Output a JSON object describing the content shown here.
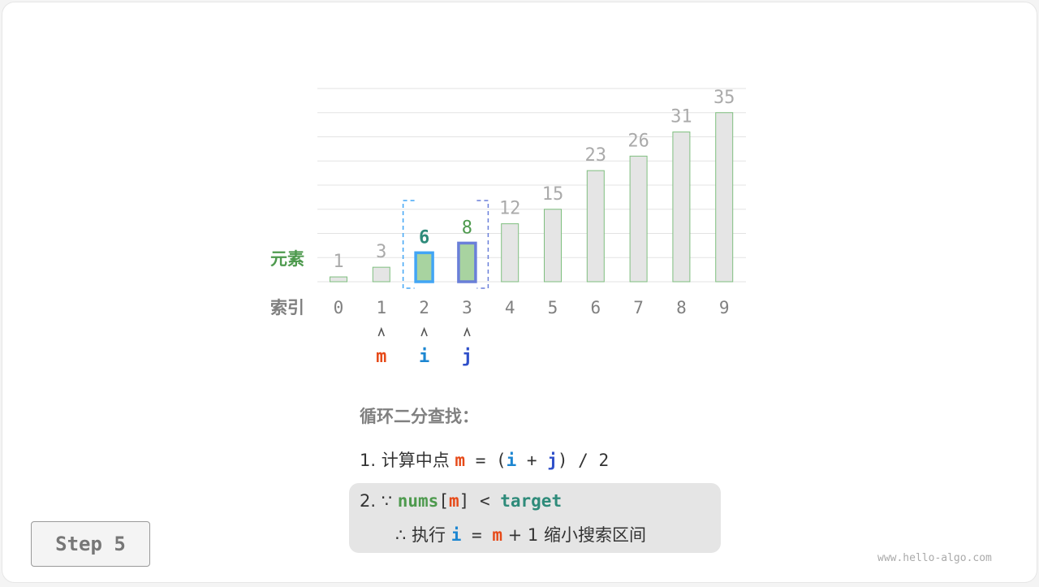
{
  "chart_data": {
    "type": "bar",
    "categories": [
      "0",
      "1",
      "2",
      "3",
      "4",
      "5",
      "6",
      "7",
      "8",
      "9"
    ],
    "values": [
      1,
      3,
      6,
      8,
      12,
      15,
      23,
      26,
      31,
      35
    ],
    "ylim": [
      0,
      40
    ],
    "grid": true,
    "row_labels": {
      "element": "元素",
      "index": "索引"
    },
    "highlight": {
      "i": 2,
      "j": 3,
      "m": 1
    },
    "colors": {
      "bar": "#e5e5e5",
      "bar_border": "#7fbf7f",
      "highlight_fill": "#a8d3a0",
      "i_border": "#42a5f5",
      "j_border": "#6a7fd9",
      "i_label": "#1c86d1",
      "j_label": "#2f4fc9",
      "m_label": "#e64a19",
      "six": "#2e8b7a",
      "eight": "#4e9a4e",
      "muted": "#aaaaaa"
    }
  },
  "pointers": {
    "arrow": "^",
    "m": "m",
    "i": "i",
    "j": "j"
  },
  "steps": {
    "title": "循环二分查找：",
    "line1": {
      "prefix": "1. 计算中点 ",
      "m": "m",
      "eq": " = (",
      "i": "i",
      "plus": " + ",
      "j": "j",
      "suffix": ") / 2"
    },
    "line2": {
      "prefix": "2. ∵ ",
      "nums": "nums",
      "lb": "[",
      "m": "m",
      "rb": "]",
      "lt": " < ",
      "target": "target"
    },
    "line3": {
      "prefix": "∴ 执行 ",
      "i": "i",
      "eq": " = ",
      "m": "m",
      "suffix": " + 1 缩小搜索区间"
    }
  },
  "step_button": "Step 5",
  "watermark": "www.hello-algo.com"
}
